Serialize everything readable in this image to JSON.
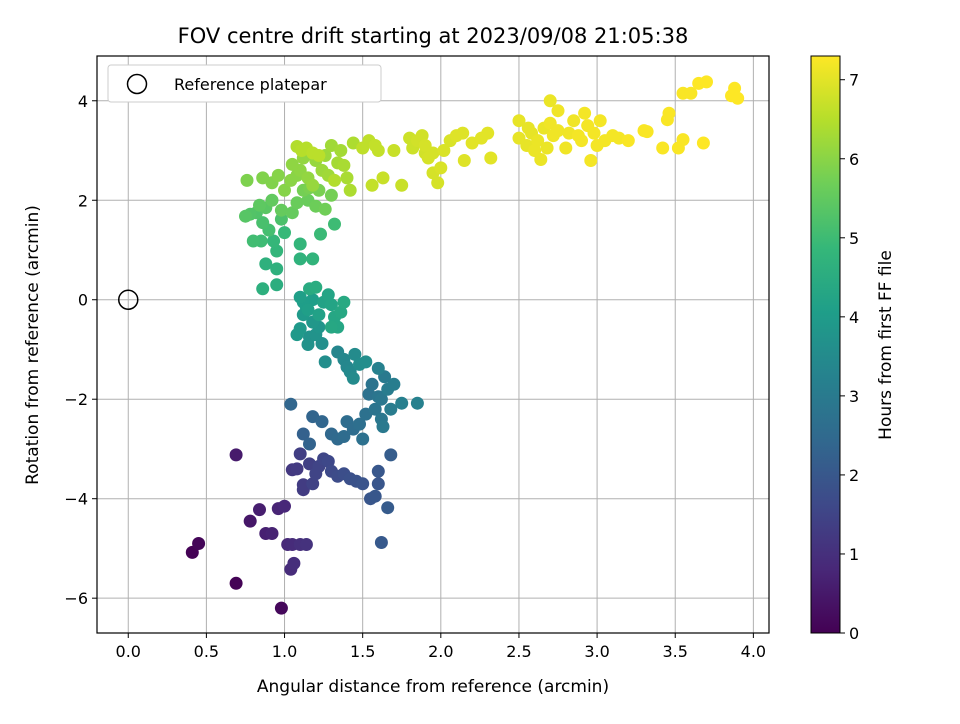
{
  "chart_data": {
    "type": "scatter",
    "title": "FOV centre drift starting at 2023/09/08 21:05:38",
    "xlabel": "Angular distance from reference (arcmin)",
    "ylabel": "Rotation from reference (arcmin)",
    "xlim": [
      -0.2,
      4.1
    ],
    "ylim": [
      -6.7,
      4.9
    ],
    "xticks": [
      0.0,
      0.5,
      1.0,
      1.5,
      2.0,
      2.5,
      3.0,
      3.5,
      4.0
    ],
    "xtick_labels": [
      "0.0",
      "0.5",
      "1.0",
      "1.5",
      "2.0",
      "2.5",
      "3.0",
      "3.5",
      "4.0"
    ],
    "yticks": [
      -6,
      -4,
      -2,
      0,
      2,
      4
    ],
    "ytick_labels": [
      "−6",
      "−4",
      "−2",
      "0",
      "2",
      "4"
    ],
    "grid": true,
    "legend": {
      "placement": "top-left",
      "entries": [
        "Reference platepar"
      ]
    },
    "reference_point": {
      "x": 0.0,
      "y": 0.0,
      "marker": "open-circle"
    },
    "colorbar": {
      "label": "Hours from first FF file",
      "range": [
        0,
        7.3
      ],
      "ticks": [
        0,
        1,
        2,
        3,
        4,
        5,
        6,
        7
      ],
      "tick_labels": [
        "0",
        "1",
        "2",
        "3",
        "4",
        "5",
        "6",
        "7"
      ],
      "colormap": "viridis"
    },
    "colormap_stops": [
      "#440154",
      "#482878",
      "#3e4989",
      "#31688e",
      "#26828e",
      "#1f9e89",
      "#35b779",
      "#6ece58",
      "#b5de2b",
      "#fde725"
    ],
    "points": [
      [
        0.41,
        -5.08,
        0.02
      ],
      [
        0.45,
        -4.9,
        0.1
      ],
      [
        0.69,
        -5.7,
        0.05
      ],
      [
        0.98,
        -6.2,
        0.15
      ],
      [
        0.69,
        -3.12,
        0.55
      ],
      [
        0.78,
        -4.45,
        0.45
      ],
      [
        0.84,
        -4.22,
        0.6
      ],
      [
        0.88,
        -4.7,
        0.65
      ],
      [
        0.92,
        -4.7,
        0.7
      ],
      [
        0.96,
        -4.2,
        0.75
      ],
      [
        1.0,
        -4.15,
        0.8
      ],
      [
        1.02,
        -4.92,
        0.85
      ],
      [
        1.05,
        -4.92,
        0.9
      ],
      [
        1.04,
        -5.42,
        0.9
      ],
      [
        1.06,
        -5.3,
        0.95
      ],
      [
        1.1,
        -4.92,
        1.0
      ],
      [
        1.14,
        -4.92,
        1.05
      ],
      [
        1.05,
        -3.42,
        1.2
      ],
      [
        1.08,
        -3.4,
        1.25
      ],
      [
        1.12,
        -3.72,
        1.3
      ],
      [
        1.12,
        -3.82,
        1.3
      ],
      [
        1.1,
        -3.1,
        1.35
      ],
      [
        1.16,
        -3.3,
        1.4
      ],
      [
        1.18,
        -3.7,
        1.45
      ],
      [
        1.2,
        -3.5,
        1.5
      ],
      [
        1.22,
        -3.35,
        1.5
      ],
      [
        1.25,
        -3.2,
        1.55
      ],
      [
        1.28,
        -3.25,
        1.6
      ],
      [
        1.3,
        -3.45,
        1.65
      ],
      [
        1.34,
        -3.55,
        1.7
      ],
      [
        1.38,
        -3.5,
        1.75
      ],
      [
        1.42,
        -3.6,
        1.8
      ],
      [
        1.46,
        -3.65,
        1.85
      ],
      [
        1.5,
        -3.7,
        1.9
      ],
      [
        1.55,
        -4.0,
        1.95
      ],
      [
        1.58,
        -3.95,
        2.0
      ],
      [
        1.6,
        -3.45,
        2.0
      ],
      [
        1.62,
        -4.88,
        2.05
      ],
      [
        1.66,
        -4.18,
        2.1
      ],
      [
        1.68,
        -3.12,
        2.15
      ],
      [
        1.6,
        -3.7,
        1.95
      ],
      [
        1.12,
        -2.7,
        2.25
      ],
      [
        1.16,
        -2.9,
        2.3
      ],
      [
        1.18,
        -2.35,
        2.35
      ],
      [
        1.04,
        -2.1,
        2.4
      ],
      [
        1.24,
        -2.45,
        2.4
      ],
      [
        1.3,
        -2.7,
        2.45
      ],
      [
        1.34,
        -2.8,
        2.5
      ],
      [
        1.38,
        -2.75,
        2.55
      ],
      [
        1.4,
        -2.45,
        2.6
      ],
      [
        1.44,
        -2.6,
        2.6
      ],
      [
        1.48,
        -2.5,
        2.65
      ],
      [
        1.5,
        -2.8,
        2.7
      ],
      [
        1.52,
        -2.3,
        2.7
      ],
      [
        1.54,
        -1.9,
        2.75
      ],
      [
        1.56,
        -1.7,
        2.8
      ],
      [
        1.58,
        -2.2,
        2.8
      ],
      [
        1.6,
        -1.95,
        2.85
      ],
      [
        1.62,
        -2.4,
        2.9
      ],
      [
        1.63,
        -2.55,
        2.95
      ],
      [
        1.64,
        -1.55,
        3.0
      ],
      [
        1.66,
        -1.8,
        3.05
      ],
      [
        1.68,
        -2.2,
        3.05
      ],
      [
        1.7,
        -1.7,
        3.1
      ],
      [
        1.75,
        -2.08,
        3.15
      ],
      [
        1.85,
        -2.08,
        3.2
      ],
      [
        1.6,
        -1.38,
        3.2
      ],
      [
        1.62,
        -2.0,
        2.9
      ],
      [
        1.34,
        -1.05,
        3.35
      ],
      [
        1.38,
        -1.2,
        3.4
      ],
      [
        1.4,
        -1.35,
        3.4
      ],
      [
        1.42,
        -1.45,
        3.45
      ],
      [
        1.44,
        -1.58,
        3.5
      ],
      [
        1.45,
        -1.1,
        3.5
      ],
      [
        1.48,
        -1.3,
        3.55
      ],
      [
        1.52,
        -1.25,
        3.6
      ],
      [
        1.26,
        -1.25,
        3.6
      ],
      [
        1.24,
        -0.88,
        3.65
      ],
      [
        1.15,
        -0.9,
        3.7
      ],
      [
        1.16,
        -0.75,
        3.7
      ],
      [
        1.2,
        -0.7,
        3.75
      ],
      [
        1.22,
        -0.55,
        3.8
      ],
      [
        1.18,
        -0.45,
        3.85
      ],
      [
        1.1,
        -0.58,
        3.9
      ],
      [
        1.08,
        -0.7,
        3.9
      ],
      [
        1.12,
        -0.3,
        3.95
      ],
      [
        1.14,
        -0.15,
        4.0
      ],
      [
        1.18,
        0.0,
        4.05
      ],
      [
        1.12,
        -0.05,
        4.05
      ],
      [
        1.1,
        0.05,
        4.1
      ],
      [
        1.15,
        -0.2,
        4.1
      ],
      [
        1.22,
        -0.3,
        4.15
      ],
      [
        1.25,
        -0.05,
        4.2
      ],
      [
        1.28,
        0.1,
        4.25
      ],
      [
        1.3,
        -0.1,
        4.25
      ],
      [
        1.32,
        -0.35,
        4.3
      ],
      [
        1.34,
        -0.55,
        4.3
      ],
      [
        1.36,
        -0.25,
        4.35
      ],
      [
        1.38,
        -0.05,
        4.4
      ],
      [
        1.3,
        -0.55,
        4.35
      ],
      [
        1.16,
        0.22,
        4.45
      ],
      [
        1.2,
        0.25,
        4.5
      ],
      [
        0.95,
        0.3,
        4.55
      ],
      [
        0.86,
        0.22,
        4.6
      ],
      [
        0.95,
        0.62,
        4.65
      ],
      [
        0.88,
        0.72,
        4.65
      ],
      [
        1.1,
        0.82,
        4.7
      ],
      [
        1.18,
        0.82,
        4.75
      ],
      [
        1.1,
        1.12,
        4.8
      ],
      [
        0.95,
        0.98,
        4.8
      ],
      [
        0.93,
        1.18,
        4.85
      ],
      [
        1.0,
        1.35,
        4.9
      ],
      [
        1.23,
        1.32,
        4.95
      ],
      [
        1.32,
        1.52,
        5.0
      ],
      [
        0.85,
        1.18,
        5.0
      ],
      [
        0.8,
        1.18,
        5.05
      ],
      [
        0.9,
        1.4,
        5.1
      ],
      [
        0.86,
        1.55,
        5.15
      ],
      [
        0.98,
        1.62,
        5.2
      ],
      [
        0.82,
        1.75,
        5.25
      ],
      [
        0.78,
        1.72,
        5.3
      ],
      [
        0.75,
        1.68,
        5.35
      ],
      [
        0.88,
        1.85,
        5.4
      ],
      [
        0.84,
        1.9,
        5.45
      ],
      [
        0.92,
        2.0,
        5.5
      ],
      [
        0.98,
        1.8,
        5.55
      ],
      [
        1.05,
        1.75,
        5.55
      ],
      [
        1.08,
        1.95,
        5.6
      ],
      [
        1.15,
        2.0,
        5.6
      ],
      [
        1.2,
        1.88,
        5.65
      ],
      [
        1.26,
        1.82,
        5.7
      ],
      [
        1.3,
        2.1,
        5.75
      ],
      [
        1.12,
        2.2,
        5.75
      ],
      [
        1.16,
        2.25,
        5.8
      ],
      [
        1.22,
        2.2,
        5.8
      ],
      [
        0.76,
        2.4,
        5.85
      ],
      [
        0.86,
        2.45,
        5.9
      ],
      [
        0.92,
        2.35,
        5.9
      ],
      [
        0.96,
        2.5,
        5.95
      ],
      [
        1.0,
        2.2,
        5.95
      ],
      [
        1.04,
        2.4,
        6.0
      ],
      [
        1.08,
        2.5,
        6.0
      ],
      [
        1.1,
        2.6,
        6.05
      ],
      [
        1.05,
        2.72,
        6.05
      ],
      [
        1.12,
        2.85,
        6.1
      ],
      [
        1.15,
        2.45,
        6.1
      ],
      [
        1.18,
        2.3,
        6.15
      ],
      [
        1.2,
        2.8,
        6.15
      ],
      [
        1.24,
        2.6,
        6.2
      ],
      [
        1.26,
        2.9,
        6.2
      ],
      [
        1.28,
        2.5,
        6.25
      ],
      [
        1.3,
        3.1,
        6.25
      ],
      [
        1.34,
        2.75,
        6.3
      ],
      [
        1.36,
        3.0,
        6.3
      ],
      [
        1.38,
        2.7,
        6.35
      ],
      [
        1.4,
        2.45,
        6.35
      ],
      [
        1.42,
        2.2,
        6.4
      ],
      [
        1.44,
        3.15,
        6.4
      ],
      [
        1.32,
        2.4,
        6.45
      ],
      [
        1.08,
        3.08,
        6.45
      ],
      [
        1.11,
        3.0,
        6.5
      ],
      [
        1.14,
        3.05,
        6.5
      ],
      [
        1.18,
        2.95,
        6.55
      ],
      [
        1.22,
        2.9,
        6.55
      ],
      [
        1.5,
        3.05,
        6.6
      ],
      [
        1.54,
        3.2,
        6.6
      ],
      [
        1.58,
        3.1,
        6.65
      ],
      [
        1.6,
        3.0,
        6.65
      ],
      [
        1.56,
        2.3,
        6.65
      ],
      [
        1.63,
        2.45,
        6.7
      ],
      [
        1.75,
        2.3,
        6.7
      ],
      [
        1.7,
        3.0,
        6.7
      ],
      [
        1.8,
        3.25,
        6.75
      ],
      [
        1.82,
        3.05,
        6.75
      ],
      [
        1.85,
        3.2,
        6.8
      ],
      [
        1.88,
        3.3,
        6.8
      ],
      [
        1.9,
        3.1,
        6.85
      ],
      [
        1.92,
        2.85,
        6.85
      ],
      [
        1.95,
        2.55,
        6.85
      ],
      [
        1.98,
        2.35,
        6.85
      ],
      [
        2.0,
        2.65,
        6.9
      ],
      [
        2.02,
        3.0,
        6.9
      ],
      [
        2.06,
        3.2,
        6.9
      ],
      [
        2.1,
        3.3,
        6.95
      ],
      [
        2.14,
        3.35,
        6.95
      ],
      [
        2.15,
        2.8,
        6.95
      ],
      [
        2.2,
        3.15,
        7.0
      ],
      [
        2.26,
        3.25,
        7.0
      ],
      [
        2.3,
        3.35,
        7.0
      ],
      [
        2.32,
        2.85,
        7.0
      ],
      [
        1.95,
        2.95,
        6.85
      ],
      [
        1.9,
        2.95,
        6.8
      ],
      [
        2.5,
        3.25,
        7.05
      ],
      [
        2.55,
        3.1,
        7.05
      ],
      [
        2.58,
        3.35,
        7.05
      ],
      [
        2.6,
        3.0,
        7.1
      ],
      [
        2.62,
        3.2,
        7.1
      ],
      [
        2.64,
        2.82,
        7.1
      ],
      [
        2.66,
        3.45,
        7.1
      ],
      [
        2.68,
        3.05,
        7.1
      ],
      [
        2.7,
        3.55,
        7.15
      ],
      [
        2.72,
        3.3,
        7.15
      ],
      [
        2.75,
        3.4,
        7.15
      ],
      [
        2.8,
        3.05,
        7.15
      ],
      [
        2.82,
        3.35,
        7.15
      ],
      [
        2.85,
        3.6,
        7.15
      ],
      [
        2.88,
        3.3,
        7.2
      ],
      [
        2.9,
        3.2,
        7.2
      ],
      [
        2.92,
        3.75,
        7.2
      ],
      [
        2.94,
        3.5,
        7.2
      ],
      [
        2.96,
        2.8,
        7.2
      ],
      [
        2.98,
        3.35,
        7.2
      ],
      [
        3.0,
        3.1,
        7.2
      ],
      [
        3.02,
        3.6,
        7.2
      ],
      [
        3.05,
        3.2,
        7.2
      ],
      [
        3.1,
        3.3,
        7.2
      ],
      [
        3.14,
        3.25,
        7.2
      ],
      [
        3.2,
        3.2,
        7.25
      ],
      [
        3.3,
        3.4,
        7.25
      ],
      [
        3.32,
        3.38,
        7.25
      ],
      [
        3.42,
        3.05,
        7.25
      ],
      [
        3.45,
        3.62,
        7.25
      ],
      [
        3.46,
        3.75,
        7.25
      ],
      [
        3.52,
        3.05,
        7.25
      ],
      [
        3.55,
        3.22,
        7.25
      ],
      [
        3.55,
        4.15,
        7.25
      ],
      [
        3.6,
        4.15,
        7.25
      ],
      [
        3.65,
        4.35,
        7.3
      ],
      [
        3.68,
        3.15,
        7.3
      ],
      [
        3.7,
        4.38,
        7.3
      ],
      [
        3.86,
        4.1,
        7.3
      ],
      [
        3.88,
        4.25,
        7.3
      ],
      [
        3.9,
        4.05,
        7.3
      ],
      [
        2.7,
        4.0,
        7.1
      ],
      [
        2.75,
        3.8,
        7.15
      ],
      [
        2.5,
        3.6,
        7.05
      ],
      [
        2.56,
        3.45,
        7.05
      ]
    ]
  }
}
